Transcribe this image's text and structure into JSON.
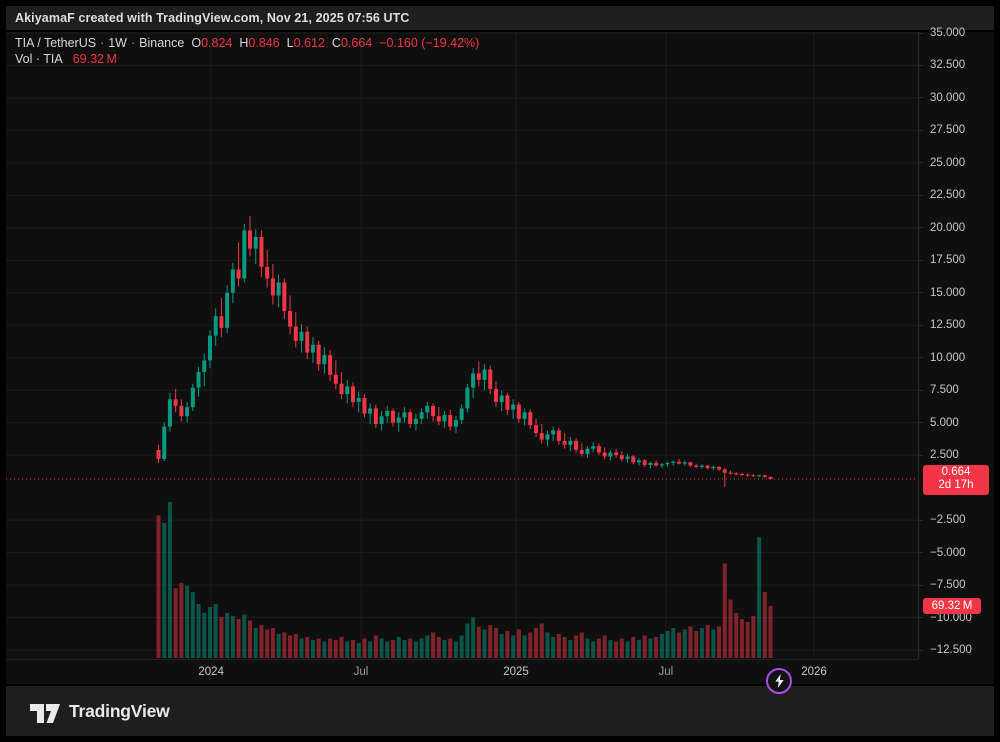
{
  "attribution": "AkiyamaF created with TradingView.com, Nov 21, 2025 07:56 UTC",
  "legend": {
    "symbol": "TIA / TetherUS",
    "sep": "·",
    "interval": "1W",
    "exchange": "Binance",
    "ohlc": [
      {
        "k": "O",
        "v": "0.824"
      },
      {
        "k": "H",
        "v": "0.846"
      },
      {
        "k": "L",
        "v": "0.612"
      },
      {
        "k": "C",
        "v": "0.664"
      }
    ],
    "change": "−0.160 (−19.42%)",
    "volume_label": "Vol · TIA",
    "volume_value": "69.32 M"
  },
  "price_scale": {
    "ticks": [
      "35.000",
      "32.500",
      "30.000",
      "27.500",
      "25.000",
      "22.500",
      "20.000",
      "17.500",
      "15.000",
      "12.500",
      "10.000",
      "7.500",
      "5.000",
      "2.500",
      "−2.500",
      "−5.000",
      "−7.500",
      "−10.000",
      "−12.500"
    ],
    "price_label": {
      "price": "0.664",
      "countdown": "2d 17h"
    },
    "volume_tag": "69.32 M"
  },
  "footer": {
    "brand": "TradingView"
  },
  "boost_icon": "lightning-bolt",
  "colors": {
    "frame_bg": "#000000",
    "bar_bg": "#1e1e1e",
    "chart_bg": "#0f0f0f",
    "grid": "#1c1c1f",
    "axis_border": "#2a2a2e",
    "text_primary": "#d5d8de",
    "text_axis": "#c6c8ce",
    "up": "#089981",
    "down": "#f23645",
    "label_bg": "#f23645",
    "boost_ring": "#b04ce6"
  },
  "chart_data": {
    "type": "candlestick+volume",
    "title": "TIA / TetherUS · 1W · Binance",
    "interval": "1 week",
    "last_price": 0.664,
    "last_change": -0.16,
    "last_change_pct": -19.42,
    "last_volume_m": 69.32,
    "y_axis": {
      "visible_min": -13.75,
      "visible_max": 35.1,
      "tick_step": 2.5,
      "grid": true
    },
    "x_ticks": [
      {
        "label": "2024",
        "candle_index": 9.2,
        "major": true
      },
      {
        "label": "Jul",
        "candle_index": 35.4,
        "major": false
      },
      {
        "label": "2025",
        "candle_index": 62.5,
        "major": true
      },
      {
        "label": "Jul",
        "candle_index": 88.7,
        "major": false
      },
      {
        "label": "2026",
        "candle_index": 114.6,
        "major": true
      }
    ],
    "candles_format": [
      "open",
      "high",
      "low",
      "close",
      "volume_millions"
    ],
    "candles": [
      [
        2.9,
        3.3,
        1.9,
        2.2,
        190
      ],
      [
        2.2,
        5.05,
        2.05,
        4.7,
        180
      ],
      [
        4.7,
        7.3,
        4.3,
        6.8,
        208
      ],
      [
        6.8,
        7.6,
        5.8,
        6.3,
        93
      ],
      [
        6.3,
        6.8,
        5.1,
        5.5,
        100
      ],
      [
        5.5,
        6.6,
        5.0,
        6.2,
        96
      ],
      [
        6.2,
        8.0,
        5.9,
        7.7,
        88
      ],
      [
        7.7,
        9.3,
        7.0,
        8.9,
        72
      ],
      [
        8.9,
        10.3,
        7.8,
        9.8,
        60
      ],
      [
        9.8,
        12.1,
        9.2,
        11.7,
        68
      ],
      [
        11.7,
        13.8,
        10.9,
        13.2,
        72
      ],
      [
        13.2,
        14.6,
        11.6,
        12.3,
        55
      ],
      [
        12.3,
        15.6,
        11.9,
        15.0,
        60
      ],
      [
        15.0,
        17.3,
        14.2,
        16.8,
        56
      ],
      [
        16.8,
        18.9,
        15.5,
        16.1,
        52
      ],
      [
        16.1,
        20.3,
        15.8,
        19.8,
        58
      ],
      [
        19.8,
        20.9,
        17.8,
        18.4,
        50
      ],
      [
        18.4,
        19.9,
        17.2,
        19.3,
        40
      ],
      [
        19.3,
        19.8,
        16.2,
        17.0,
        44
      ],
      [
        17.0,
        18.3,
        15.4,
        16.1,
        38
      ],
      [
        16.1,
        17.2,
        14.1,
        14.8,
        40
      ],
      [
        14.8,
        16.4,
        13.9,
        15.8,
        32
      ],
      [
        15.8,
        16.1,
        13.0,
        13.6,
        34
      ],
      [
        13.6,
        14.8,
        11.8,
        12.4,
        30
      ],
      [
        12.4,
        13.5,
        10.8,
        11.3,
        32
      ],
      [
        11.3,
        12.6,
        10.4,
        12.0,
        26
      ],
      [
        12.0,
        12.4,
        9.9,
        10.4,
        28
      ],
      [
        10.4,
        11.6,
        9.6,
        11.0,
        24
      ],
      [
        11.0,
        11.3,
        9.0,
        9.5,
        26
      ],
      [
        9.5,
        10.8,
        8.8,
        10.2,
        22
      ],
      [
        10.2,
        10.6,
        8.2,
        8.7,
        26
      ],
      [
        8.7,
        9.8,
        7.6,
        8.0,
        24
      ],
      [
        8.0,
        8.9,
        6.8,
        7.2,
        28
      ],
      [
        7.2,
        8.3,
        6.5,
        7.8,
        22
      ],
      [
        7.8,
        8.1,
        6.2,
        6.6,
        24
      ],
      [
        6.6,
        7.4,
        5.8,
        6.9,
        20
      ],
      [
        6.9,
        7.2,
        5.4,
        5.7,
        26
      ],
      [
        5.7,
        6.5,
        4.9,
        6.1,
        22
      ],
      [
        6.1,
        6.4,
        4.6,
        4.9,
        30
      ],
      [
        4.9,
        5.9,
        4.4,
        5.5,
        26
      ],
      [
        5.5,
        6.3,
        5.0,
        5.9,
        22
      ],
      [
        5.9,
        6.1,
        4.7,
        5.0,
        24
      ],
      [
        5.0,
        5.8,
        4.3,
        5.4,
        28
      ],
      [
        5.4,
        6.2,
        5.0,
        5.8,
        24
      ],
      [
        5.8,
        6.0,
        4.6,
        4.9,
        26
      ],
      [
        4.9,
        5.7,
        4.4,
        5.3,
        22
      ],
      [
        5.3,
        6.1,
        4.9,
        5.8,
        26
      ],
      [
        5.8,
        6.6,
        5.3,
        6.3,
        30
      ],
      [
        6.3,
        6.5,
        5.1,
        5.5,
        34
      ],
      [
        5.5,
        6.2,
        4.8,
        5.1,
        28
      ],
      [
        5.1,
        5.9,
        4.6,
        5.6,
        24
      ],
      [
        5.6,
        6.0,
        4.4,
        4.7,
        26
      ],
      [
        4.7,
        5.5,
        4.2,
        5.2,
        22
      ],
      [
        5.2,
        6.4,
        4.9,
        6.1,
        30
      ],
      [
        6.1,
        8.0,
        5.8,
        7.7,
        46
      ],
      [
        7.7,
        9.2,
        6.9,
        8.8,
        54
      ],
      [
        8.8,
        9.7,
        7.8,
        8.3,
        42
      ],
      [
        8.3,
        9.5,
        7.5,
        9.1,
        38
      ],
      [
        9.1,
        9.4,
        7.2,
        7.6,
        44
      ],
      [
        7.6,
        8.2,
        6.2,
        6.6,
        40
      ],
      [
        6.6,
        7.5,
        5.9,
        7.1,
        32
      ],
      [
        7.1,
        7.3,
        5.6,
        6.0,
        36
      ],
      [
        6.0,
        6.8,
        5.3,
        6.4,
        30
      ],
      [
        6.4,
        6.6,
        5.0,
        5.3,
        38
      ],
      [
        5.3,
        6.1,
        4.8,
        5.8,
        30
      ],
      [
        5.8,
        6.0,
        4.5,
        4.8,
        34
      ],
      [
        4.8,
        5.3,
        3.9,
        4.2,
        40
      ],
      [
        4.2,
        4.9,
        3.4,
        3.7,
        46
      ],
      [
        3.7,
        4.4,
        3.2,
        4.1,
        34
      ],
      [
        4.1,
        4.7,
        3.6,
        4.4,
        28
      ],
      [
        4.4,
        4.6,
        3.3,
        3.6,
        32
      ],
      [
        3.6,
        4.2,
        3.0,
        3.3,
        28
      ],
      [
        3.3,
        3.9,
        2.8,
        3.6,
        24
      ],
      [
        3.6,
        3.8,
        2.7,
        2.9,
        30
      ],
      [
        2.9,
        3.4,
        2.4,
        2.6,
        34
      ],
      [
        2.6,
        3.2,
        2.3,
        3.0,
        26
      ],
      [
        3.0,
        3.5,
        2.7,
        3.2,
        22
      ],
      [
        3.2,
        3.4,
        2.5,
        2.7,
        26
      ],
      [
        2.7,
        3.1,
        2.2,
        2.4,
        30
      ],
      [
        2.4,
        2.9,
        2.1,
        2.7,
        24
      ],
      [
        2.7,
        3.0,
        2.3,
        2.5,
        22
      ],
      [
        2.5,
        2.8,
        2.0,
        2.2,
        26
      ],
      [
        2.2,
        2.6,
        1.9,
        2.4,
        22
      ],
      [
        2.4,
        2.5,
        1.8,
        1.95,
        28
      ],
      [
        1.95,
        2.3,
        1.7,
        2.1,
        24
      ],
      [
        2.1,
        2.2,
        1.6,
        1.75,
        30
      ],
      [
        1.75,
        2.0,
        1.5,
        1.9,
        26
      ],
      [
        1.9,
        2.1,
        1.6,
        1.7,
        28
      ],
      [
        1.7,
        1.9,
        1.5,
        1.8,
        32
      ],
      [
        1.8,
        2.0,
        1.6,
        1.9,
        36
      ],
      [
        1.9,
        2.1,
        1.7,
        2.0,
        40
      ],
      [
        2.0,
        2.2,
        1.8,
        1.85,
        34
      ],
      [
        1.85,
        2.1,
        1.7,
        1.95,
        38
      ],
      [
        1.95,
        2.0,
        1.6,
        1.7,
        42
      ],
      [
        1.7,
        1.85,
        1.5,
        1.6,
        36
      ],
      [
        1.6,
        1.8,
        1.45,
        1.7,
        40
      ],
      [
        1.7,
        1.75,
        1.4,
        1.5,
        44
      ],
      [
        1.5,
        1.7,
        1.35,
        1.6,
        38
      ],
      [
        1.6,
        1.65,
        1.3,
        1.4,
        42
      ],
      [
        1.4,
        1.5,
        0.08,
        1.15,
        126
      ],
      [
        1.15,
        1.3,
        1.0,
        1.1,
        78
      ],
      [
        1.1,
        1.2,
        0.95,
        1.05,
        60
      ],
      [
        1.05,
        1.15,
        0.9,
        1.0,
        52
      ],
      [
        1.0,
        1.1,
        0.85,
        0.95,
        48
      ],
      [
        0.95,
        1.05,
        0.82,
        0.9,
        56
      ],
      [
        0.9,
        1.0,
        0.8,
        0.95,
        161
      ],
      [
        0.95,
        0.98,
        0.78,
        0.824,
        88
      ],
      [
        0.824,
        0.846,
        0.612,
        0.664,
        69.32
      ]
    ]
  }
}
